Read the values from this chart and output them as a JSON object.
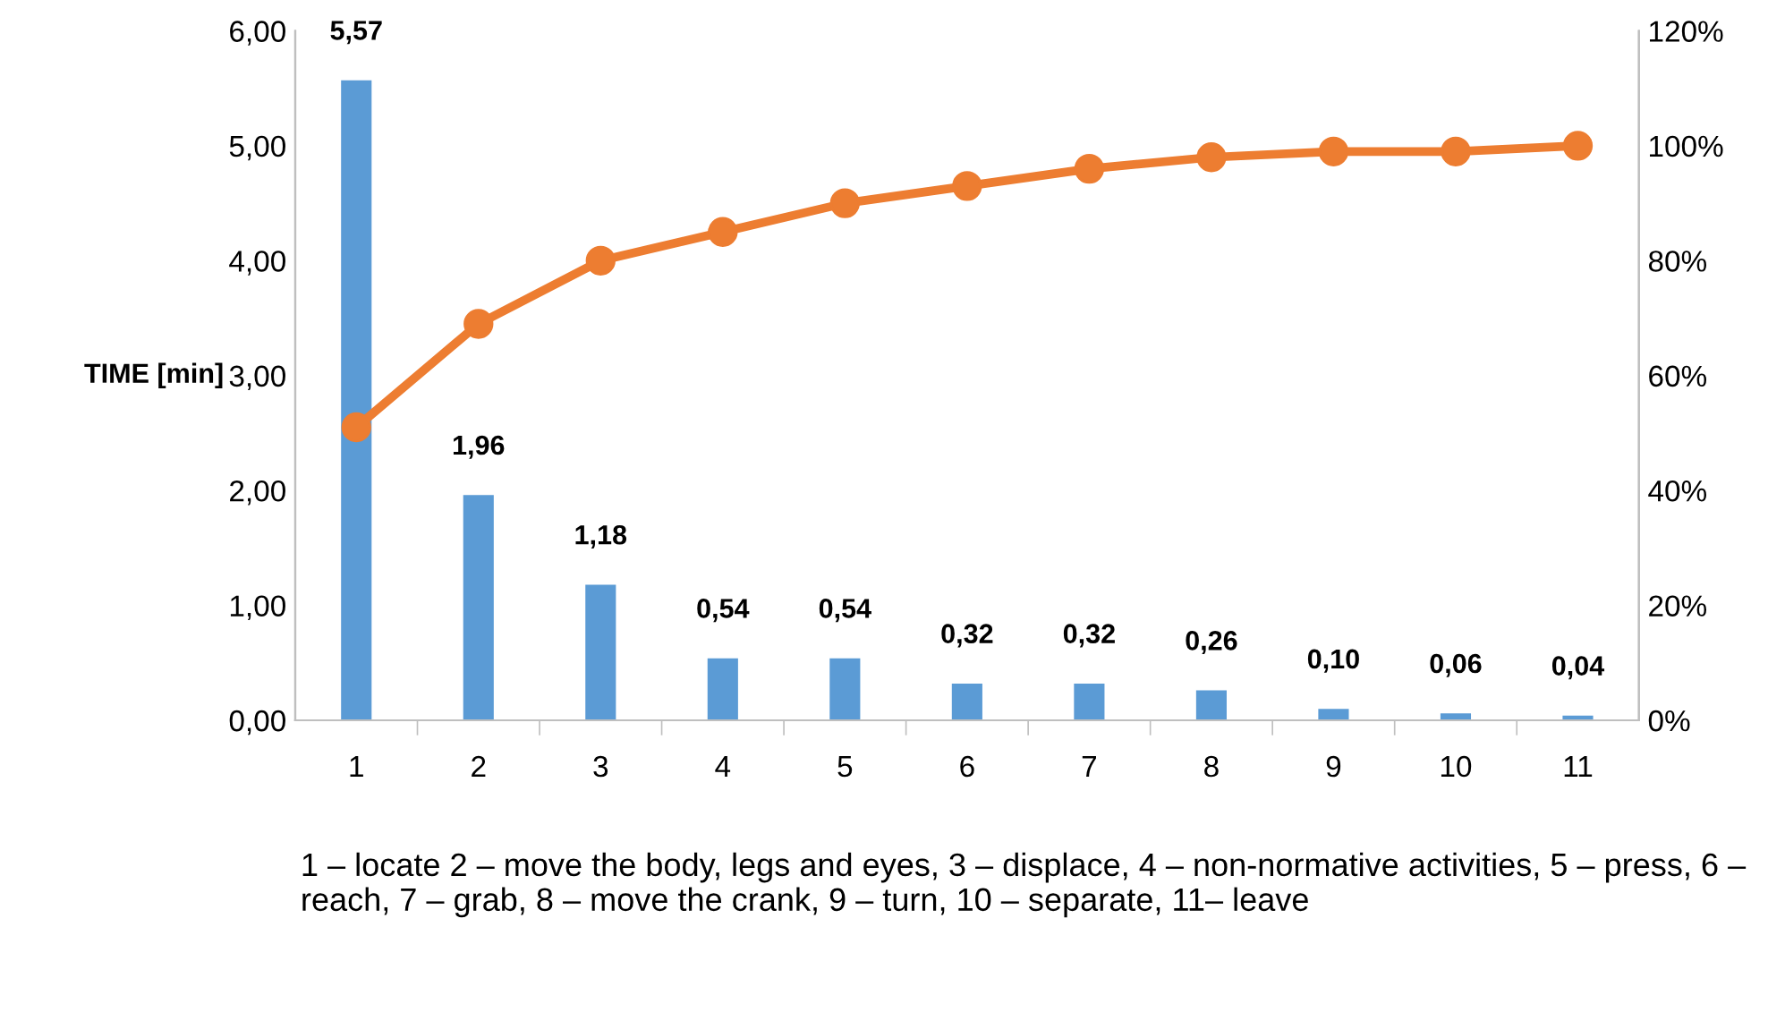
{
  "chart_data": {
    "type": "bar",
    "ylabel": "TIME [min]",
    "categories": [
      "1",
      "2",
      "3",
      "4",
      "5",
      "6",
      "7",
      "8",
      "9",
      "10",
      "11"
    ],
    "series": [
      {
        "color": "#5b9bd5",
        "values": [
          5.57,
          1.96,
          1.18,
          0.54,
          0.54,
          0.32,
          0.32,
          0.26,
          0.1,
          0.06,
          0.04
        ],
        "value_labels": [
          "5,57",
          "1,96",
          "1,18",
          "0,54",
          "0,54",
          "0,32",
          "0,32",
          "0,26",
          "0,10",
          "0,06",
          "0,04"
        ]
      },
      {
        "type": "line",
        "axis": "y2",
        "color": "#ed7d31",
        "marker": "circle",
        "values": [
          51,
          69,
          80,
          85,
          90,
          93,
          96,
          98,
          99,
          99,
          100
        ]
      }
    ],
    "ylim": [
      0,
      6
    ],
    "yticks": [
      {
        "value": 0,
        "label": "0,00"
      },
      {
        "value": 1,
        "label": "1,00"
      },
      {
        "value": 2,
        "label": "2,00"
      },
      {
        "value": 3,
        "label": "3,00"
      },
      {
        "value": 4,
        "label": "4,00"
      },
      {
        "value": 5,
        "label": "5,00"
      },
      {
        "value": 6,
        "label": "6,00"
      }
    ],
    "y2lim": [
      0,
      120
    ],
    "y2ticks": [
      {
        "value": 0,
        "label": "0%"
      },
      {
        "value": 20,
        "label": "20%"
      },
      {
        "value": 40,
        "label": "40%"
      },
      {
        "value": 60,
        "label": "60%"
      },
      {
        "value": 80,
        "label": "80%"
      },
      {
        "value": 100,
        "label": "100%"
      },
      {
        "value": 120,
        "label": "120%"
      }
    ],
    "grid": false,
    "legend": false,
    "annotations": [
      "1 – locate 2 – move the body, legs and eyes, 3 – displace, 4 – non-normative activities, 5 – press, 6 – reach, 7 – grab, 8 – move the crank, 9 – turn, 10 – separate, 11– leave"
    ]
  }
}
